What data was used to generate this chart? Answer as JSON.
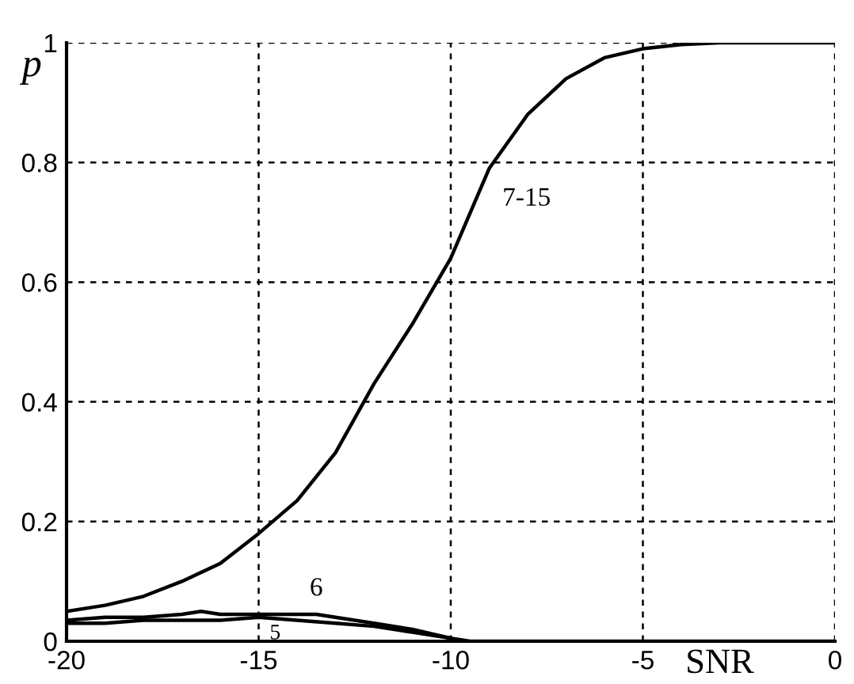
{
  "chart_data": {
    "type": "line",
    "xlabel": "SNR",
    "ylabel": "p",
    "series": [
      {
        "name": "7-15",
        "color": "#000000",
        "x": [
          -20,
          -19,
          -18,
          -17,
          -16,
          -15,
          -14,
          -13,
          -12,
          -11,
          -10,
          -9,
          -8,
          -7,
          -6,
          -5,
          -4,
          -3,
          -2,
          -1,
          0
        ],
        "values": [
          0.05,
          0.06,
          0.075,
          0.1,
          0.13,
          0.18,
          0.235,
          0.315,
          0.43,
          0.53,
          0.64,
          0.79,
          0.88,
          0.94,
          0.975,
          0.99,
          0.997,
          1,
          1,
          1,
          1
        ]
      },
      {
        "name": "6",
        "color": "#000000",
        "x": [
          -20,
          -19,
          -18,
          -17,
          -16.5,
          -16,
          -15,
          -14,
          -13.5,
          -13,
          -12,
          -11,
          -10,
          -9.5,
          -5,
          0
        ],
        "values": [
          0.035,
          0.04,
          0.04,
          0.045,
          0.05,
          0.045,
          0.045,
          0.045,
          0.045,
          0.04,
          0.03,
          0.02,
          0.005,
          0,
          0,
          0
        ]
      },
      {
        "name": "5",
        "color": "#000000",
        "x": [
          -20,
          -19,
          -18,
          -17,
          -16,
          -15,
          -14,
          -13,
          -12,
          -11,
          -10
        ],
        "values": [
          0.03,
          0.03,
          0.035,
          0.035,
          0.035,
          0.04,
          0.035,
          0.03,
          0.025,
          0.015,
          0.005
        ]
      }
    ],
    "xlim": [
      -20,
      0
    ],
    "xticks": [
      -20,
      -15,
      -10,
      -5,
      0
    ],
    "ylim": [
      0,
      1
    ],
    "yticks": [
      0,
      0.2,
      0.4,
      0.6,
      0.8,
      1
    ],
    "grid": true,
    "marker": "none",
    "line_style": "solid"
  }
}
